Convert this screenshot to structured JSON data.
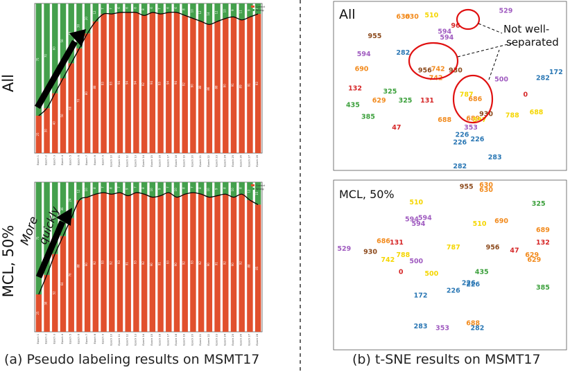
{
  "figure": {
    "caption_a": "(a) Pseudo labeling results on MSMT17",
    "caption_b": "(b) t-SNE results on MSMT17",
    "colors": {
      "correct": "#e1502d",
      "wrong": "#44a04c",
      "frame": "#555555",
      "divider": "#333333"
    }
  },
  "chart_data": [
    {
      "type": "bar",
      "stacked": true,
      "row_label": "All",
      "categories": [
        "Epoch 1",
        "Epoch 2",
        "Epoch 3",
        "Epoch 4",
        "Epoch 5",
        "Epoch 6",
        "Epoch 7",
        "Epoch 8",
        "Epoch 9",
        "Epoch 10",
        "Epoch 11",
        "Epoch 12",
        "Epoch 13",
        "Epoch 14",
        "Epoch 15",
        "Epoch 16",
        "Epoch 17",
        "Epoch 18",
        "Epoch 19",
        "Epoch 20",
        "Epoch 21",
        "Epoch 22",
        "Epoch 23",
        "Epoch 24",
        "Epoch 25",
        "Epoch 26",
        "Epoch 27",
        "Epoch 28"
      ],
      "series": [
        {
          "name": "Correct",
          "values": [
            25,
            30,
            40,
            50,
            60,
            70,
            80,
            88,
            93,
            93,
            94,
            94,
            94,
            92,
            94,
            93,
            94,
            94,
            92,
            90,
            88,
            86,
            88,
            90,
            91,
            89,
            91,
            93
          ]
        },
        {
          "name": "Wrong",
          "values": [
            75,
            70,
            60,
            50,
            40,
            30,
            20,
            12,
            7,
            7,
            6,
            6,
            6,
            8,
            6,
            7,
            6,
            6,
            8,
            10,
            12,
            14,
            12,
            10,
            9,
            11,
            9,
            7
          ]
        }
      ],
      "legend": [
        "Correct",
        "Wrong"
      ],
      "ylim": [
        0,
        100
      ],
      "annotations": []
    },
    {
      "type": "bar",
      "stacked": true,
      "row_label": "MCL, 50%",
      "categories": [
        "Epoch 1",
        "Epoch 2",
        "Epoch 3",
        "Epoch 4",
        "Epoch 5",
        "Epoch 6",
        "Epoch 7",
        "Epoch 8",
        "Epoch 9",
        "Epoch 10",
        "Epoch 11",
        "Epoch 12",
        "Epoch 13",
        "Epoch 14",
        "Epoch 15",
        "Epoch 16",
        "Epoch 17",
        "Epoch 18",
        "Epoch 19",
        "Epoch 20",
        "Epoch 21",
        "Epoch 22",
        "Epoch 23",
        "Epoch 24",
        "Epoch 25",
        "Epoch 26",
        "Epoch 27",
        "Epoch 28"
      ],
      "series": [
        {
          "name": "Correct",
          "values": [
            25,
            38,
            52,
            64,
            76,
            88,
            90,
            92,
            93,
            92,
            93,
            91,
            93,
            92,
            90,
            91,
            93,
            90,
            92,
            93,
            92,
            90,
            91,
            92,
            90,
            92,
            88,
            85
          ]
        },
        {
          "name": "Wrong",
          "values": [
            75,
            62,
            48,
            36,
            24,
            12,
            10,
            8,
            7,
            8,
            7,
            9,
            7,
            8,
            10,
            9,
            7,
            10,
            8,
            7,
            8,
            10,
            9,
            8,
            10,
            8,
            12,
            15
          ]
        }
      ],
      "legend": [
        "Correct",
        "Wrong"
      ],
      "ylim": [
        0,
        100
      ],
      "annotations": [
        "More",
        "quickly"
      ]
    },
    {
      "type": "scatter",
      "title": "All",
      "annotation": [
        "Not well-",
        "separated"
      ],
      "points": [
        {
          "label": "630",
          "x": 0.29,
          "y": 0.06,
          "color": "#f28b1e"
        },
        {
          "label": "630",
          "x": 0.33,
          "y": 0.06,
          "color": "#f28b1e"
        },
        {
          "label": "510",
          "x": 0.42,
          "y": 0.05,
          "color": "#f5d600"
        },
        {
          "label": "529",
          "x": 0.76,
          "y": 0.02,
          "color": "#a05cc0"
        },
        {
          "label": "96",
          "x": 0.53,
          "y": 0.12,
          "color": "#d62728"
        },
        {
          "label": "594",
          "x": 0.48,
          "y": 0.16,
          "color": "#a05cc0"
        },
        {
          "label": "594",
          "x": 0.49,
          "y": 0.2,
          "color": "#a05cc0"
        },
        {
          "label": "955",
          "x": 0.16,
          "y": 0.19,
          "color": "#8c4a1c"
        },
        {
          "label": "594",
          "x": 0.11,
          "y": 0.31,
          "color": "#a05cc0"
        },
        {
          "label": "282",
          "x": 0.29,
          "y": 0.3,
          "color": "#2a77b4"
        },
        {
          "label": "690",
          "x": 0.1,
          "y": 0.41,
          "color": "#f28b1e"
        },
        {
          "label": "956",
          "x": 0.39,
          "y": 0.42,
          "color": "#8c4a1c"
        },
        {
          "label": "742",
          "x": 0.45,
          "y": 0.41,
          "color": "#f28b1e"
        },
        {
          "label": "742",
          "x": 0.44,
          "y": 0.47,
          "color": "#f28b1e"
        },
        {
          "label": "930",
          "x": 0.53,
          "y": 0.42,
          "color": "#8c4a1c"
        },
        {
          "label": "132",
          "x": 0.07,
          "y": 0.54,
          "color": "#d62728"
        },
        {
          "label": "325",
          "x": 0.23,
          "y": 0.56,
          "color": "#3ca03c"
        },
        {
          "label": "629",
          "x": 0.18,
          "y": 0.62,
          "color": "#f28b1e"
        },
        {
          "label": "325",
          "x": 0.3,
          "y": 0.62,
          "color": "#3ca03c"
        },
        {
          "label": "131",
          "x": 0.4,
          "y": 0.62,
          "color": "#d62728"
        },
        {
          "label": "435",
          "x": 0.06,
          "y": 0.65,
          "color": "#3ca03c"
        },
        {
          "label": "385",
          "x": 0.13,
          "y": 0.73,
          "color": "#3ca03c"
        },
        {
          "label": "787",
          "x": 0.58,
          "y": 0.58,
          "color": "#f5d600"
        },
        {
          "label": "686",
          "x": 0.62,
          "y": 0.61,
          "color": "#f28b1e"
        },
        {
          "label": "500",
          "x": 0.74,
          "y": 0.48,
          "color": "#a05cc0"
        },
        {
          "label": "0",
          "x": 0.85,
          "y": 0.58,
          "color": "#d62728"
        },
        {
          "label": "282",
          "x": 0.93,
          "y": 0.47,
          "color": "#2a77b4"
        },
        {
          "label": "172",
          "x": 0.99,
          "y": 0.43,
          "color": "#2a77b4"
        },
        {
          "label": "930",
          "x": 0.67,
          "y": 0.71,
          "color": "#8c4a1c"
        },
        {
          "label": "689",
          "x": 0.61,
          "y": 0.74,
          "color": "#f28b1e"
        },
        {
          "label": "688",
          "x": 0.48,
          "y": 0.75,
          "color": "#f28b1e"
        },
        {
          "label": "597",
          "x": 0.64,
          "y": 0.75,
          "color": "#f5d600"
        },
        {
          "label": "788",
          "x": 0.79,
          "y": 0.72,
          "color": "#f5d600"
        },
        {
          "label": "688",
          "x": 0.9,
          "y": 0.7,
          "color": "#f5d600"
        },
        {
          "label": "47",
          "x": 0.26,
          "y": 0.8,
          "color": "#d62728"
        },
        {
          "label": "353",
          "x": 0.6,
          "y": 0.8,
          "color": "#a05cc0"
        },
        {
          "label": "226",
          "x": 0.56,
          "y": 0.85,
          "color": "#2a77b4"
        },
        {
          "label": "226",
          "x": 0.63,
          "y": 0.88,
          "color": "#2a77b4"
        },
        {
          "label": "226",
          "x": 0.55,
          "y": 0.9,
          "color": "#2a77b4"
        },
        {
          "label": "283",
          "x": 0.71,
          "y": 1.0,
          "color": "#2a77b4"
        },
        {
          "label": "282",
          "x": 0.55,
          "y": 1.06,
          "color": "#2a77b4"
        }
      ]
    },
    {
      "type": "scatter",
      "title": "MCL, 50%",
      "points": [
        {
          "label": "955",
          "x": 0.58,
          "y": 0.02,
          "color": "#8c4a1c"
        },
        {
          "label": "630",
          "x": 0.67,
          "y": 0.01,
          "color": "#f28b1e"
        },
        {
          "label": "630",
          "x": 0.67,
          "y": 0.04,
          "color": "#f28b1e"
        },
        {
          "label": "325",
          "x": 0.91,
          "y": 0.13,
          "color": "#3ca03c"
        },
        {
          "label": "510",
          "x": 0.35,
          "y": 0.12,
          "color": "#f5d600"
        },
        {
          "label": "594",
          "x": 0.33,
          "y": 0.23,
          "color": "#a05cc0"
        },
        {
          "label": "594",
          "x": 0.39,
          "y": 0.22,
          "color": "#a05cc0"
        },
        {
          "label": "594",
          "x": 0.36,
          "y": 0.26,
          "color": "#a05cc0"
        },
        {
          "label": "510",
          "x": 0.64,
          "y": 0.26,
          "color": "#f5d600"
        },
        {
          "label": "690",
          "x": 0.74,
          "y": 0.24,
          "color": "#f28b1e"
        },
        {
          "label": "689",
          "x": 0.93,
          "y": 0.3,
          "color": "#f28b1e"
        },
        {
          "label": "132",
          "x": 0.93,
          "y": 0.38,
          "color": "#d62728"
        },
        {
          "label": "529",
          "x": 0.02,
          "y": 0.42,
          "color": "#a05cc0"
        },
        {
          "label": "686",
          "x": 0.2,
          "y": 0.37,
          "color": "#f28b1e"
        },
        {
          "label": "131",
          "x": 0.26,
          "y": 0.38,
          "color": "#d62728"
        },
        {
          "label": "930",
          "x": 0.14,
          "y": 0.44,
          "color": "#8c4a1c"
        },
        {
          "label": "787",
          "x": 0.52,
          "y": 0.41,
          "color": "#f5d600"
        },
        {
          "label": "956",
          "x": 0.7,
          "y": 0.41,
          "color": "#8c4a1c"
        },
        {
          "label": "47",
          "x": 0.8,
          "y": 0.43,
          "color": "#d62728"
        },
        {
          "label": "629",
          "x": 0.88,
          "y": 0.46,
          "color": "#f28b1e"
        },
        {
          "label": "629",
          "x": 0.89,
          "y": 0.49,
          "color": "#f28b1e"
        },
        {
          "label": "788",
          "x": 0.29,
          "y": 0.46,
          "color": "#f5d600"
        },
        {
          "label": "742",
          "x": 0.22,
          "y": 0.49,
          "color": "#f5d600"
        },
        {
          "label": "500",
          "x": 0.35,
          "y": 0.5,
          "color": "#a05cc0"
        },
        {
          "label": "0",
          "x": 0.28,
          "y": 0.57,
          "color": "#d62728"
        },
        {
          "label": "500",
          "x": 0.42,
          "y": 0.58,
          "color": "#f5d600"
        },
        {
          "label": "435",
          "x": 0.65,
          "y": 0.57,
          "color": "#3ca03c"
        },
        {
          "label": "226",
          "x": 0.59,
          "y": 0.64,
          "color": "#2a77b4"
        },
        {
          "label": "226",
          "x": 0.61,
          "y": 0.65,
          "color": "#2a77b4"
        },
        {
          "label": "385",
          "x": 0.93,
          "y": 0.67,
          "color": "#3ca03c"
        },
        {
          "label": "226",
          "x": 0.52,
          "y": 0.69,
          "color": "#2a77b4"
        },
        {
          "label": "172",
          "x": 0.37,
          "y": 0.72,
          "color": "#2a77b4"
        },
        {
          "label": "688",
          "x": 0.61,
          "y": 0.9,
          "color": "#f28b1e"
        },
        {
          "label": "283",
          "x": 0.37,
          "y": 0.92,
          "color": "#2a77b4"
        },
        {
          "label": "353",
          "x": 0.47,
          "y": 0.93,
          "color": "#a05cc0"
        },
        {
          "label": "282",
          "x": 0.63,
          "y": 0.93,
          "color": "#2a77b4"
        }
      ]
    }
  ]
}
